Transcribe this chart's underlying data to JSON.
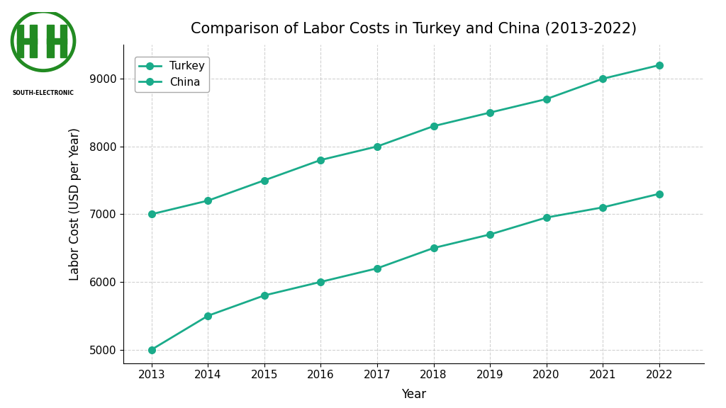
{
  "title": "Comparison of Labor Costs in Turkey and China (2013-2022)",
  "xlabel": "Year",
  "ylabel": "Labor Cost (USD per Year)",
  "years": [
    2013,
    2014,
    2015,
    2016,
    2017,
    2018,
    2019,
    2020,
    2021,
    2022
  ],
  "turkey": [
    7000,
    7200,
    7500,
    7800,
    8000,
    8300,
    8500,
    8700,
    9000,
    9200
  ],
  "china": [
    5000,
    5500,
    5800,
    6000,
    6200,
    6500,
    6700,
    6950,
    7100,
    7300
  ],
  "line_color": "#1aab8a",
  "background_color": "#ffffff",
  "grid_color": "#cccccc",
  "ylim": [
    4800,
    9500
  ],
  "xlim": [
    2012.5,
    2022.8
  ],
  "marker": "o",
  "marker_size": 7,
  "line_width": 2.0,
  "legend_labels": [
    "Turkey",
    "China"
  ],
  "logo_text": "SOUTH-ELECTRONIC",
  "logo_color": "#228B22",
  "title_fontsize": 15,
  "label_fontsize": 12,
  "tick_fontsize": 11,
  "legend_fontsize": 11,
  "yticks": [
    5000,
    6000,
    7000,
    8000,
    9000
  ],
  "xticks": [
    2013,
    2014,
    2015,
    2016,
    2017,
    2018,
    2019,
    2020,
    2021,
    2022
  ]
}
